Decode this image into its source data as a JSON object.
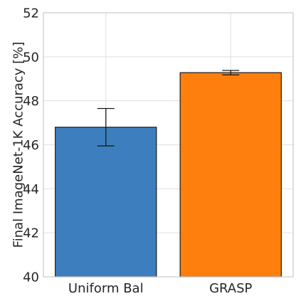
{
  "chart_data": {
    "type": "bar",
    "title": "",
    "xlabel": "",
    "ylabel": "Final ImageNet-1K Accuracy [%]",
    "categories": [
      "Uniform Bal",
      "GRASP"
    ],
    "values": [
      46.8,
      49.28
    ],
    "error": [
      0.85,
      0.1
    ],
    "colors": [
      "#3d7fbe",
      "#ff7f0e"
    ],
    "ylim": [
      40,
      52
    ],
    "yticks": [
      40,
      42,
      44,
      46,
      48,
      50,
      52
    ],
    "grid": true,
    "legend": "none"
  }
}
